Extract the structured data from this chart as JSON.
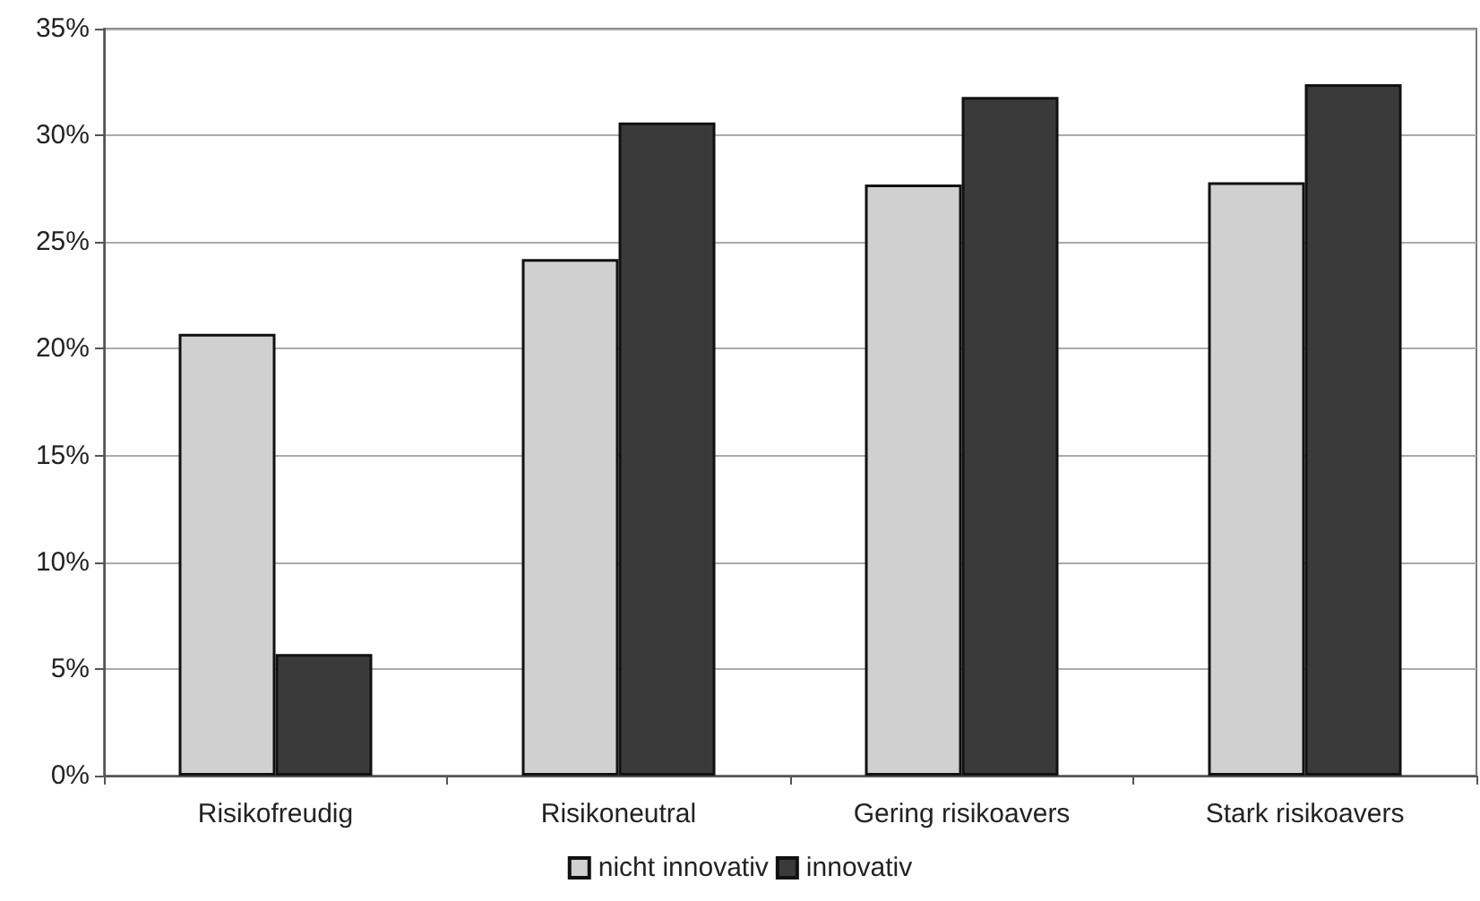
{
  "chart_data": {
    "type": "bar",
    "categories": [
      "Risikofreudig",
      "Risikoneutral",
      "Gering risikoavers",
      "Stark risikoavers"
    ],
    "series": [
      {
        "name": "nicht innovativ",
        "color": "#d0d0d0",
        "values": [
          20.7,
          24.2,
          27.7,
          27.8
        ]
      },
      {
        "name": "innovativ",
        "color": "#3a3a3a",
        "values": [
          5.7,
          30.6,
          31.8,
          32.4
        ]
      }
    ],
    "ylim": [
      0,
      35
    ],
    "yticks": [
      {
        "value": 0,
        "label": "0%"
      },
      {
        "value": 5,
        "label": "5%"
      },
      {
        "value": 10,
        "label": "10%"
      },
      {
        "value": 15,
        "label": "15%"
      },
      {
        "value": 20,
        "label": "20%"
      },
      {
        "value": 25,
        "label": "25%"
      },
      {
        "value": 30,
        "label": "30%"
      },
      {
        "value": 35,
        "label": "35%"
      }
    ],
    "grid": "y",
    "legend": "bottom"
  }
}
